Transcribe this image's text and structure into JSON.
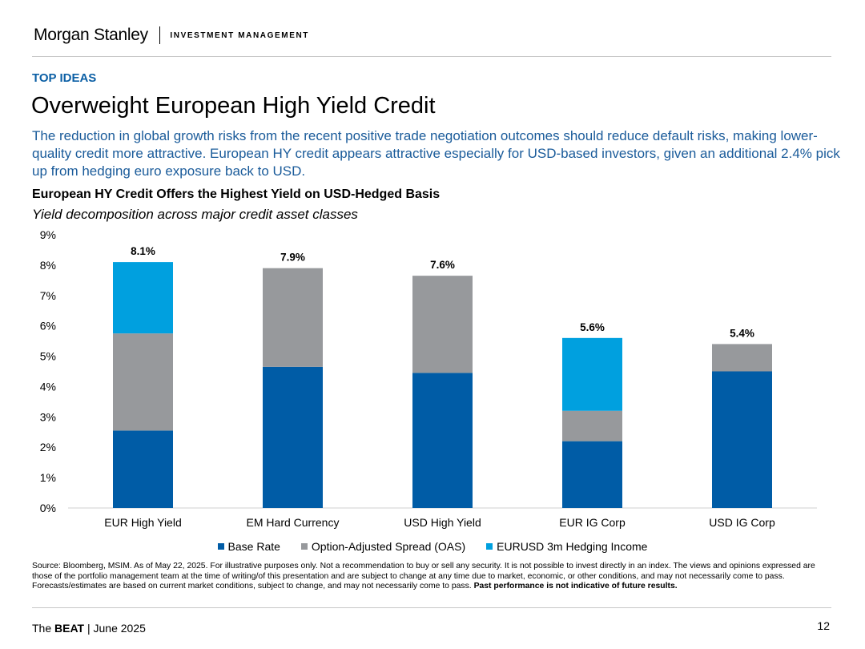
{
  "header": {
    "brand": "Morgan Stanley",
    "division": "INVESTMENT MANAGEMENT"
  },
  "eyebrow": "TOP IDEAS",
  "title": "Overweight European High Yield Credit",
  "lede": "The reduction in global growth risks from the recent positive trade negotiation outcomes should reduce default risks, making lower-quality credit more attractive. European HY credit appears attractive especially for USD-based investors, given an additional 2.4% pick up from hedging euro exposure back to USD.",
  "chart_data": {
    "type": "bar",
    "stacked": true,
    "title": "European HY Credit Offers the Highest Yield on USD-Hedged Basis",
    "subtitle": "Yield decomposition across major credit asset classes",
    "categories": [
      "EUR High Yield",
      "EM Hard Currency",
      "USD High Yield",
      "EUR IG Corp",
      "USD IG Corp"
    ],
    "series": [
      {
        "name": "Base Rate",
        "color": "#005ca6",
        "values": [
          2.55,
          4.65,
          4.45,
          2.2,
          4.5
        ]
      },
      {
        "name": "Option-Adjusted Spread (OAS)",
        "color": "#97999c",
        "values": [
          3.2,
          3.25,
          3.2,
          1.0,
          0.9
        ]
      },
      {
        "name": "EURUSD 3m Hedging Income",
        "color": "#00a0df",
        "values": [
          2.35,
          0,
          0,
          2.4,
          0
        ]
      }
    ],
    "totals": [
      "8.1%",
      "7.9%",
      "7.6%",
      "5.6%",
      "5.4%"
    ],
    "ylim": [
      0,
      9
    ],
    "yticks": [
      "0%",
      "1%",
      "2%",
      "3%",
      "4%",
      "5%",
      "6%",
      "7%",
      "8%",
      "9%"
    ],
    "xlabel": "",
    "ylabel": "",
    "legend_position": "bottom"
  },
  "source": {
    "text": "Source: Bloomberg, MSIM. As of May 22, 2025. For illustrative purposes only. Not a recommendation to buy or sell any security. It is not possible to invest directly in an index. The views and opinions expressed are those of the portfolio management team at the time of writing/of this presentation and are subject to change at any time due to market, economic, or other conditions, and may not necessarily come to pass.  Forecasts/estimates are based on current market conditions, subject to change, and may not necessarily come to pass.",
    "bold": "Past performance is not indicative of future results."
  },
  "footer": {
    "prefix": "The ",
    "brand": "BEAT",
    "suffix": " | June 2025",
    "page": "12"
  }
}
